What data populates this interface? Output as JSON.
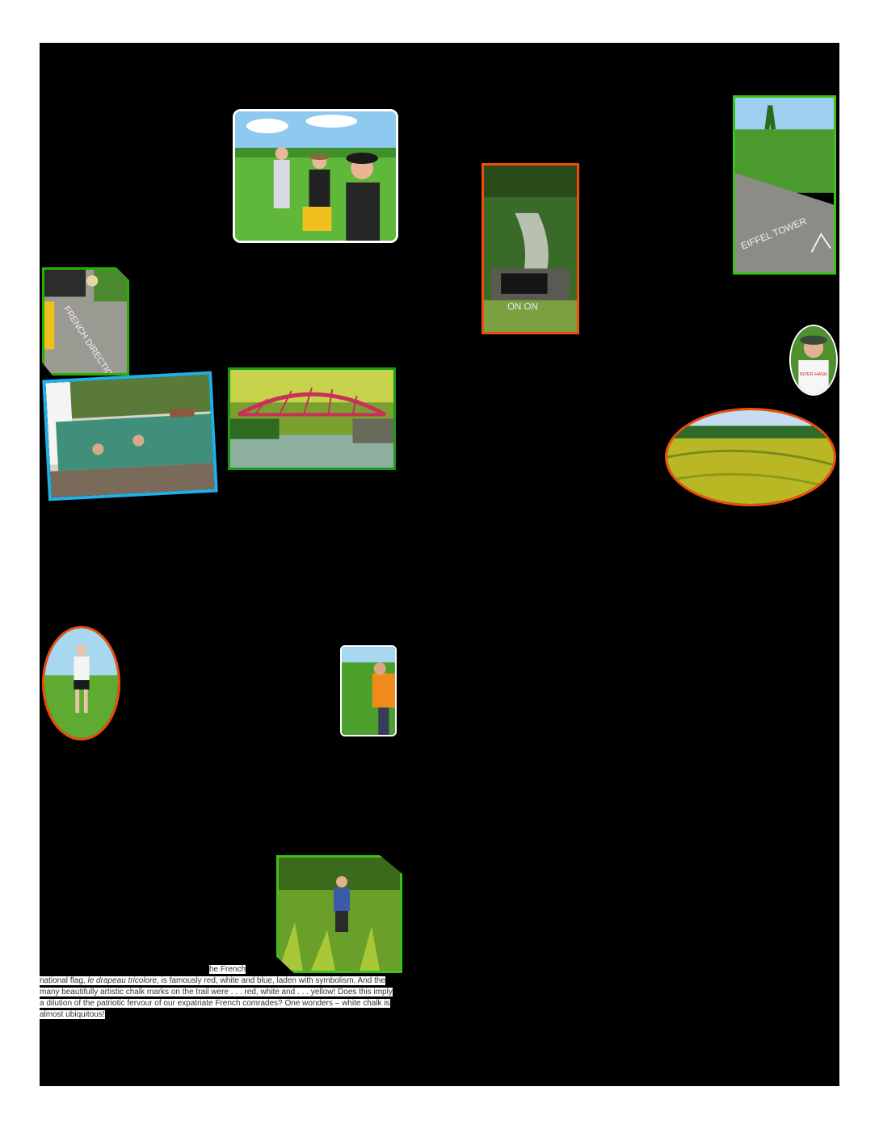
{
  "caption": {
    "line1": "he French",
    "seg_a": "national flag, ",
    "seg_em": "le drapeau tricolore",
    "seg_b": ", is famously red, white and blue, laden with symbolism. And the many beautifully artistic chalk marks on the trail were . . . red, white and . . . yellow! Does this imply a dilution of the patriotic fervour of our expatriate French comrades? One wonders – white chalk is almost ubiquitous!"
  },
  "chalk_marks": {
    "direction": "FRENCH DIRECTION",
    "eiffel": "EIFFEL TOWER",
    "on": "ON ON"
  },
  "shirt_text": "INTER HASH",
  "colors": {
    "page_bg": "#000000",
    "frame_green": "#3cc21b",
    "frame_orange": "#ee4d0a",
    "frame_blue": "#1fb0e8",
    "frame_white": "#ffffff"
  }
}
